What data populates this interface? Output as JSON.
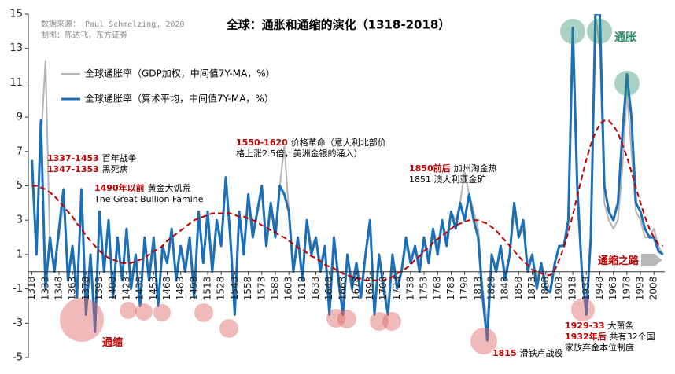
{
  "chart_data": {
    "type": "line",
    "title": "全球：通胀和通缩的演化（1318-2018）",
    "source": [
      "数据来源： Paul Schmelzing, 2020",
      "制图：陈达飞，东方证券"
    ],
    "x": [
      1318,
      1323,
      1328,
      1333,
      1338,
      1343,
      1348,
      1353,
      1358,
      1363,
      1368,
      1373,
      1378,
      1383,
      1388,
      1393,
      1398,
      1403,
      1408,
      1413,
      1418,
      1423,
      1428,
      1433,
      1438,
      1443,
      1448,
      1453,
      1458,
      1463,
      1468,
      1473,
      1478,
      1483,
      1488,
      1493,
      1498,
      1503,
      1508,
      1513,
      1518,
      1523,
      1528,
      1533,
      1538,
      1543,
      1548,
      1553,
      1558,
      1563,
      1568,
      1573,
      1578,
      1583,
      1588,
      1593,
      1598,
      1603,
      1608,
      1613,
      1618,
      1623,
      1628,
      1633,
      1638,
      1643,
      1648,
      1653,
      1658,
      1663,
      1668,
      1673,
      1678,
      1683,
      1688,
      1693,
      1698,
      1703,
      1708,
      1713,
      1718,
      1723,
      1728,
      1733,
      1738,
      1743,
      1748,
      1753,
      1758,
      1763,
      1768,
      1773,
      1778,
      1783,
      1788,
      1793,
      1798,
      1803,
      1808,
      1813,
      1818,
      1823,
      1828,
      1833,
      1838,
      1843,
      1848,
      1853,
      1858,
      1863,
      1868,
      1873,
      1878,
      1883,
      1888,
      1893,
      1898,
      1903,
      1908,
      1913,
      1918,
      1923,
      1928,
      1933,
      1938,
      1943,
      1948,
      1953,
      1958,
      1963,
      1968,
      1973,
      1978,
      1983,
      1988,
      1993,
      1998,
      2003,
      2008,
      2013,
      2018
    ],
    "series": [
      {
        "name": "全球通胀率（GDP加权，中间值7Y-MA，%）",
        "color": "#b4b4b4",
        "values": [
          5.5,
          2,
          7.5,
          12.3,
          1.5,
          0.5,
          2,
          4,
          0,
          1.5,
          -1,
          4,
          -2,
          1,
          -2.5,
          3,
          0.5,
          2.5,
          -1,
          1.5,
          0,
          2,
          -0.5,
          1,
          -1.5,
          1.5,
          0,
          1.5,
          -1.5,
          1,
          0.5,
          2,
          0,
          1.5,
          0.5,
          2,
          -1,
          3,
          1,
          3,
          0.5,
          3,
          2,
          5,
          2.5,
          -1.5,
          3.5,
          1.5,
          4.5,
          2.5,
          3.5,
          4.5,
          2,
          4,
          2.5,
          5,
          7.3,
          3.5,
          0.5,
          2,
          0,
          3,
          1.5,
          2,
          0.5,
          1.5,
          -1.5,
          2,
          0,
          -2,
          1,
          -0.5,
          0.5,
          -1,
          1,
          2.5,
          -2,
          1,
          -0.5,
          -2,
          1,
          -0.5,
          0,
          1.5,
          0.5,
          1.5,
          0.5,
          2,
          1,
          2.5,
          1.5,
          3,
          2,
          3.5,
          3,
          4,
          5.8,
          4.5,
          3.5,
          2.5,
          -1,
          -3,
          1,
          0,
          1.5,
          0,
          1,
          3.5,
          2,
          2.5,
          0.5,
          1,
          -0.5,
          0.5,
          -0.5,
          -1,
          0.5,
          1.5,
          1.5,
          2.5,
          13,
          4,
          0,
          -2,
          2,
          15,
          13,
          4,
          3,
          2.5,
          3,
          6,
          10.5,
          7,
          3.5,
          3,
          2,
          2,
          2.5,
          1.5,
          1
        ]
      },
      {
        "name": "全球通胀率（算术平均，中间值7Y-MA，%）",
        "color": "#1a6fb7",
        "values": [
          6.5,
          1,
          8.8,
          -1,
          2,
          0,
          2.5,
          4.8,
          -0.5,
          1.5,
          -1.5,
          4.8,
          -2.5,
          1,
          -3.5,
          3.5,
          0,
          3,
          -1.5,
          2,
          -0.5,
          2.5,
          -1,
          1,
          -2,
          2,
          -0.5,
          2,
          -2,
          1.5,
          0.5,
          2.5,
          -0.5,
          1.5,
          0,
          2,
          -1.5,
          3.5,
          0.5,
          3.5,
          0,
          3,
          1.5,
          5.5,
          2,
          -2.5,
          3.5,
          1,
          4.5,
          2,
          3.5,
          5,
          1.5,
          4,
          2,
          5,
          4.5,
          3.5,
          0,
          2,
          -0.5,
          3,
          1,
          2,
          0,
          1.5,
          -2.5,
          2,
          -0.5,
          -2.5,
          1,
          -1,
          0.5,
          -1.5,
          1,
          3,
          -2.5,
          1,
          -1,
          -2.5,
          1,
          -1,
          0,
          2,
          0.5,
          1.5,
          0,
          2,
          0.5,
          2.5,
          1,
          3,
          1.5,
          3.5,
          2.5,
          4,
          3,
          4.5,
          3,
          2,
          -1.5,
          -4,
          1,
          0,
          1.5,
          -0.5,
          1,
          4,
          2,
          3,
          0,
          1,
          -1,
          0.5,
          -1,
          -1.2,
          0.5,
          1.5,
          1.5,
          3,
          14.2,
          5,
          0,
          -2.5,
          2,
          15,
          15,
          5,
          3.5,
          3,
          4,
          8,
          11.5,
          9,
          4,
          3.5,
          2.5,
          2,
          2,
          1.2,
          1
        ]
      }
    ],
    "trend": {
      "color": "#c00000",
      "values": [
        5,
        5,
        4.9,
        4.8,
        4.6,
        4.4,
        4.1,
        3.8,
        3.5,
        3.2,
        2.8,
        2.5,
        2.1,
        1.8,
        1.5,
        1.2,
        1,
        0.8,
        0.7,
        0.6,
        0.5,
        0.5,
        0.5,
        0.6,
        0.7,
        0.8,
        1,
        1.2,
        1.3,
        1.5,
        1.8,
        2,
        2.2,
        2.4,
        2.6,
        2.8,
        3,
        3.1,
        3.2,
        3.3,
        3.4,
        3.4,
        3.4,
        3.4,
        3.4,
        3.3,
        3.2,
        3.2,
        3.1,
        3,
        2.9,
        2.7,
        2.6,
        2.4,
        2.3,
        2.1,
        2,
        1.8,
        1.6,
        1.4,
        1.3,
        1.1,
        0.9,
        0.8,
        0.6,
        0.4,
        0.3,
        0.2,
        0,
        -0.1,
        -0.2,
        -0.3,
        -0.4,
        -0.4,
        -0.5,
        -0.5,
        -0.5,
        -0.5,
        -0.5,
        -0.4,
        -0.3,
        -0.1,
        0,
        0.2,
        0.4,
        0.7,
        0.9,
        1.2,
        1.4,
        1.7,
        1.9,
        2.1,
        2.3,
        2.5,
        2.7,
        2.8,
        2.9,
        3,
        3,
        3,
        2.9,
        2.8,
        2.6,
        2.4,
        2.1,
        1.8,
        1.5,
        1.2,
        0.9,
        0.6,
        0.4,
        0.1,
        0,
        -0.1,
        -0.2,
        -0.2,
        0.1,
        0.7,
        1.4,
        2.3,
        3.3,
        4.4,
        5.5,
        6.5,
        7.4,
        8.1,
        8.6,
        8.8,
        8.8,
        8.5,
        8.1,
        7.4,
        6.7,
        5.8,
        4.9,
        4,
        3.2,
        2.5,
        2,
        1.6,
        1.5
      ]
    },
    "xlim": [
      1314,
      2020
    ],
    "ylim": [
      -5,
      15
    ],
    "yticks": [
      -5,
      -3,
      -1,
      1,
      3,
      5,
      7,
      9,
      11,
      13,
      15
    ],
    "xticks": [
      1318,
      1333,
      1348,
      1363,
      1378,
      1393,
      1408,
      1423,
      1438,
      1453,
      1468,
      1483,
      1498,
      1513,
      1528,
      1543,
      1558,
      1573,
      1588,
      1603,
      1618,
      1633,
      1648,
      1663,
      1678,
      1693,
      1708,
      1723,
      1738,
      1753,
      1768,
      1783,
      1798,
      1813,
      1828,
      1843,
      1858,
      1873,
      1888,
      1903,
      1918,
      1933,
      1948,
      1963,
      1978,
      1993,
      2008
    ],
    "legend": "upper left",
    "annotations": [
      {
        "lines": [
          [
            {
              "text": "1337-1453",
              "color": "#c00000"
            },
            {
              "text": "百年战争"
            }
          ],
          [
            {
              "text": "1347-1353",
              "color": "#c00000"
            },
            {
              "text": "黑死病"
            }
          ]
        ]
      },
      {
        "lines": [
          [
            {
              "text": "1490年以前",
              "color": "#c00000"
            },
            {
              "text": "黄金大饥荒"
            }
          ],
          [
            {
              "text": "The Great Bullion Famine"
            }
          ]
        ]
      },
      {
        "lines": [
          [
            {
              "text": "1550-1620",
              "color": "#c00000"
            },
            {
              "text": "价格革命（意大利北部价"
            }
          ],
          [
            {
              "text": "格上涨2.5倍，美洲金银的涌入）"
            }
          ]
        ]
      },
      {
        "lines": [
          [
            {
              "text": "1850前后",
              "color": "#c00000"
            },
            {
              "text": "加州淘金热"
            }
          ],
          [
            {
              "text": "1851  澳大利亚金矿"
            }
          ]
        ]
      },
      {
        "lines": [
          [
            {
              "text": "1815",
              "color": "#c00000"
            },
            {
              "text": "滑铁卢战役"
            }
          ]
        ]
      },
      {
        "lines": [
          [
            {
              "text": "1929-33",
              "color": "#c00000"
            },
            {
              "text": "大萧条"
            }
          ],
          [
            {
              "text": "1932年后",
              "color": "#c00000"
            },
            {
              "text": "共有32个国"
            }
          ],
          [
            {
              "text": "家放弃金本位制度"
            }
          ]
        ]
      },
      {
        "lines": [
          [
            {
              "text": "通胀",
              "color": "#2e8b6e"
            }
          ]
        ]
      },
      {
        "lines": [
          [
            {
              "text": "通缩",
              "color": "#c00000"
            }
          ]
        ]
      },
      {
        "lines": [
          [
            {
              "text": "通缩之路",
              "color": "#c00000"
            }
          ]
        ]
      }
    ]
  }
}
